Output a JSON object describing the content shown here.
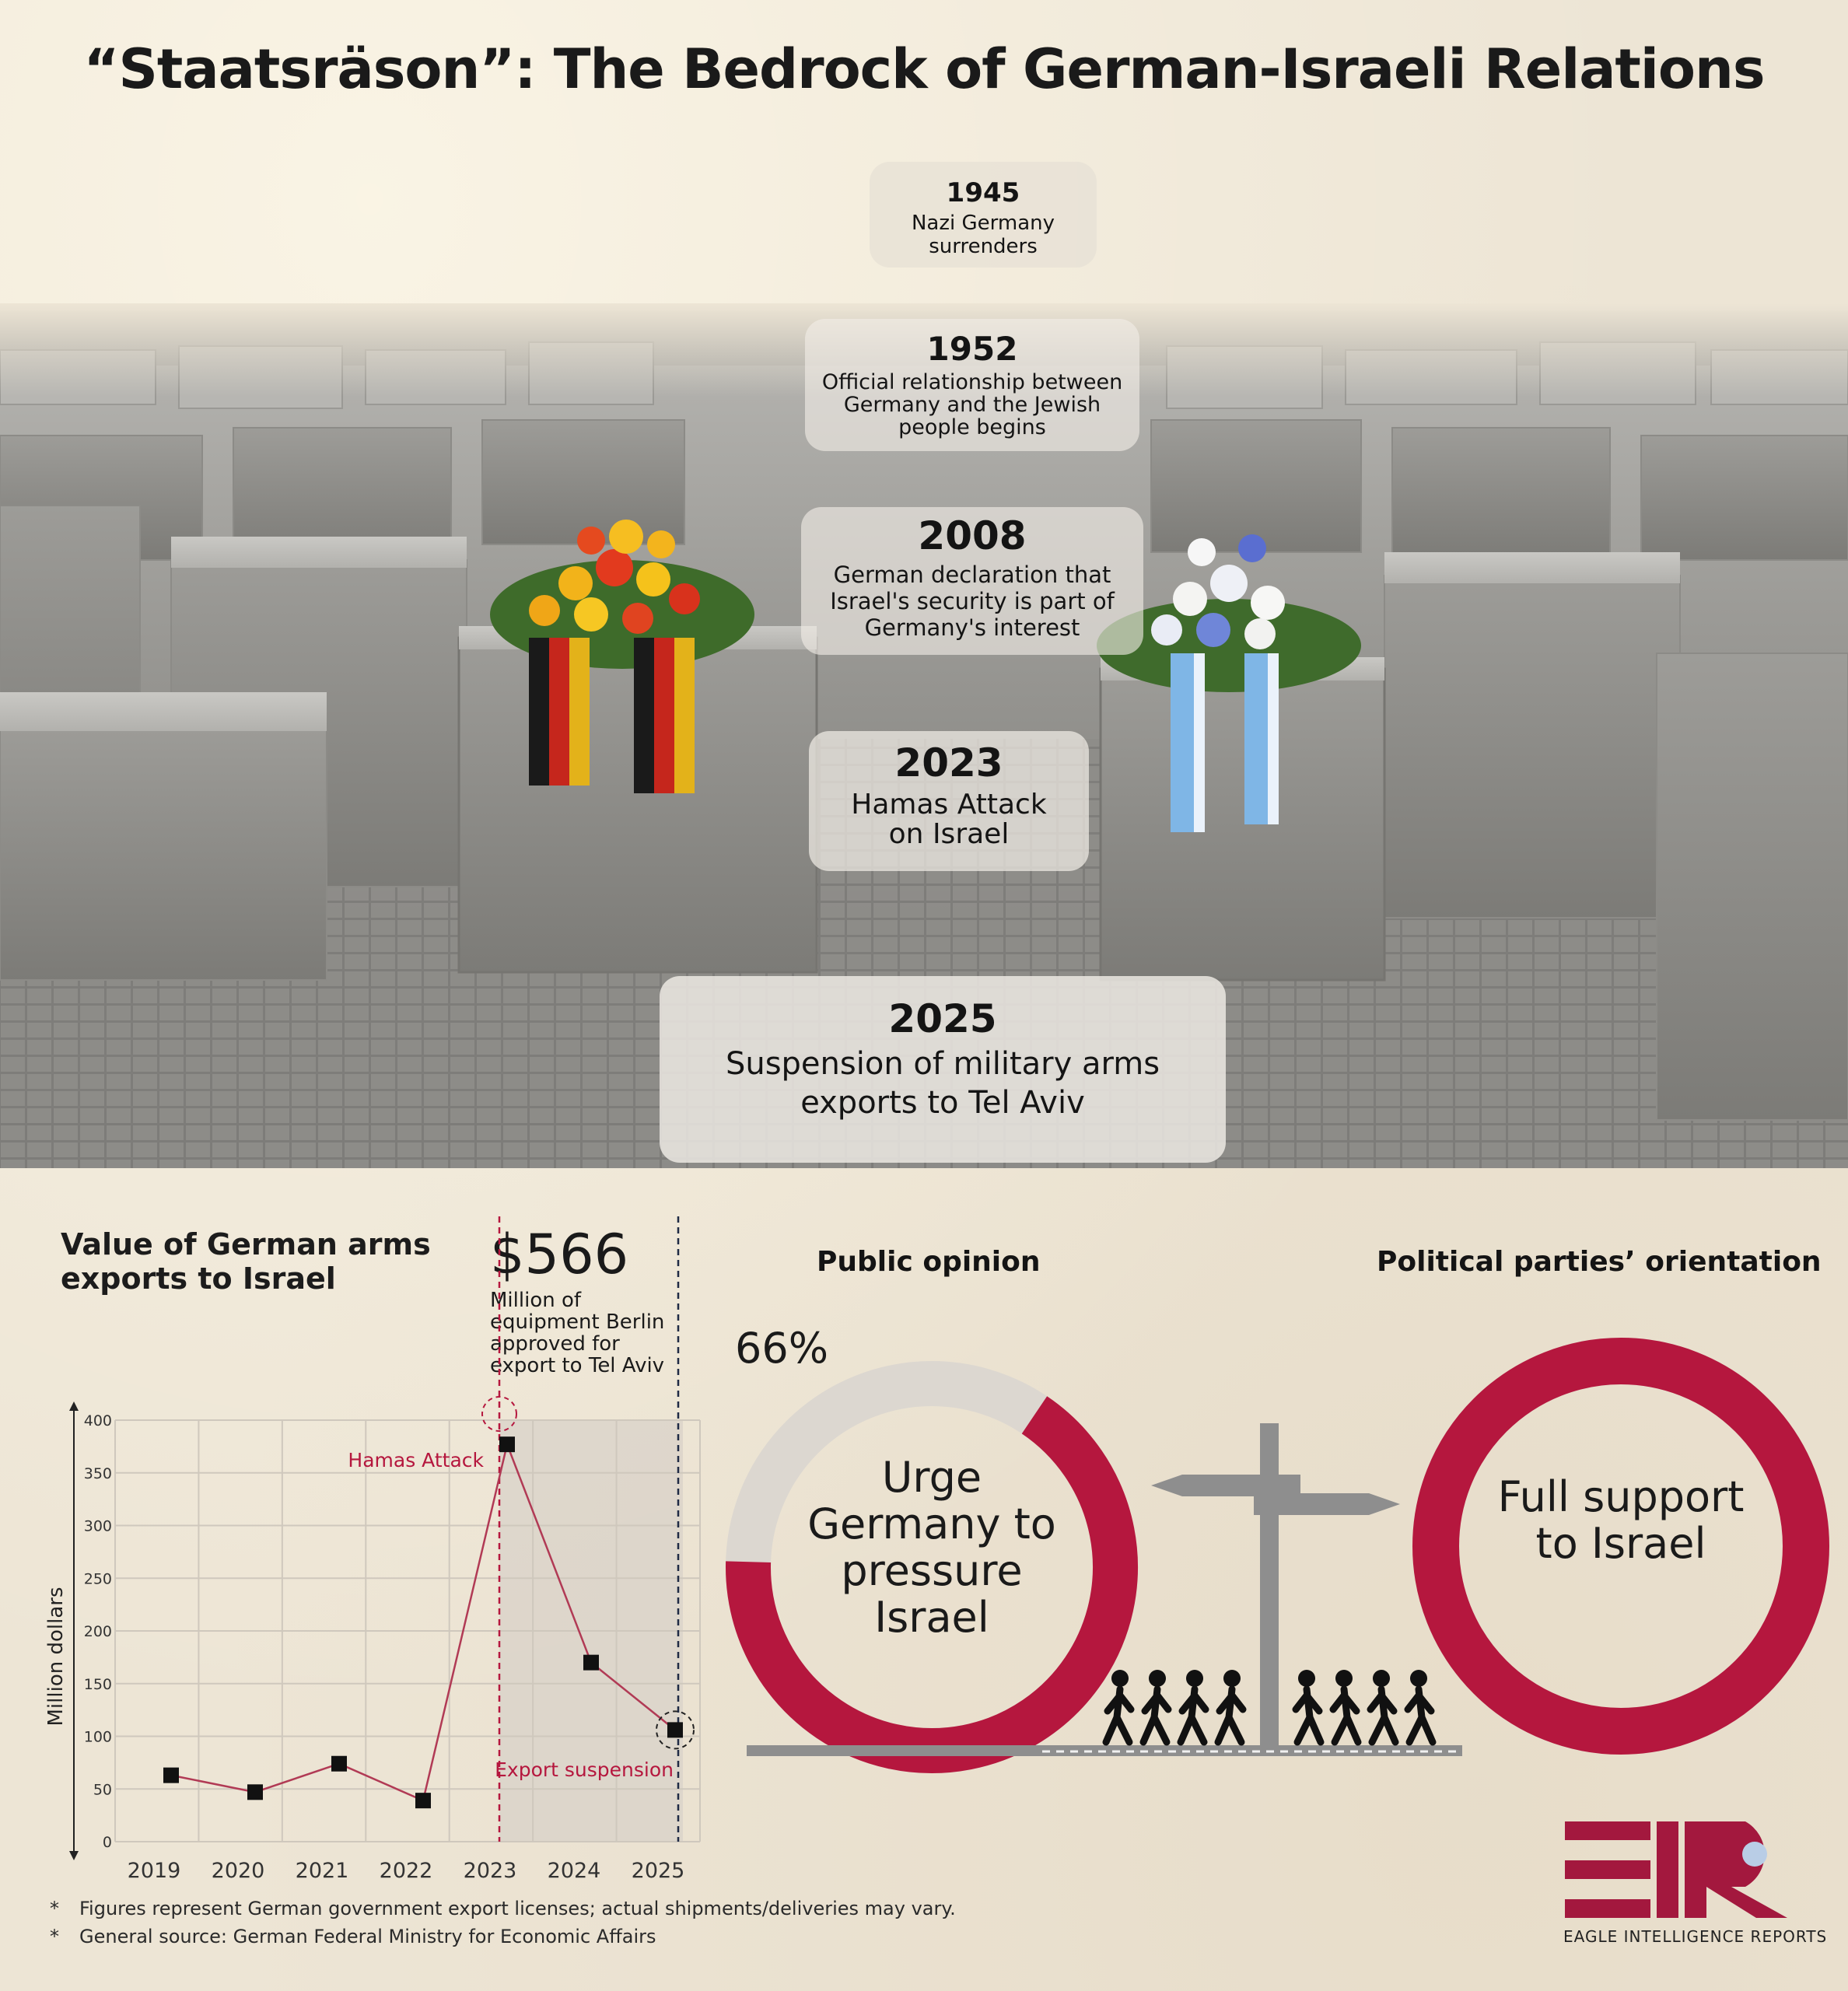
{
  "title": "“Staatsräson”: The Bedrock of German-Israeli Relations",
  "timeline": [
    {
      "year": "1945",
      "desc": "Nazi Germany surrenders"
    },
    {
      "year": "1952",
      "desc": "Official relationship between Germany and the Jewish people begins"
    },
    {
      "year": "2008",
      "desc": "German declaration that Israel's security is part of Germany's interest"
    },
    {
      "year": "2023",
      "desc": "Hamas Attack on Israel"
    },
    {
      "year": "2025",
      "desc": "Suspension of military arms exports to Tel Aviv"
    }
  ],
  "chart_data": {
    "type": "line",
    "title": "Value of German arms exports to Israel",
    "ylabel": "Million dollars",
    "xlabel": "",
    "x": [
      "2019",
      "2020",
      "2021",
      "2022",
      "2023",
      "2024",
      "2025"
    ],
    "values": [
      63,
      47,
      74,
      39,
      377,
      170,
      106
    ],
    "ylim": [
      0,
      400
    ],
    "yticks": [
      0,
      50,
      100,
      150,
      200,
      250,
      300,
      350,
      400
    ],
    "grid": true,
    "annotations": [
      {
        "label": "Hamas Attack",
        "x": "2023"
      },
      {
        "label": "Export suspension",
        "x": "2025"
      }
    ],
    "callout": {
      "value": "$566",
      "desc": "Million of equipment Berlin approved for export to Tel Aviv"
    }
  },
  "public_opinion": {
    "title": "Public opinion",
    "percent_label": "66%",
    "value": 66,
    "label": "Urge Germany to pressure Israel"
  },
  "parties": {
    "title": "Political parties’ orientation",
    "value": 100,
    "label": "Full support to Israel"
  },
  "footnotes": [
    "Figures represent German government export licenses; actual shipments/deliveries may vary.",
    "General source: German Federal Ministry for Economic Affairs"
  ],
  "footnote_marker": "*",
  "logo": {
    "text": "EAGLE INTELLIGENCE REPORTS"
  },
  "colors": {
    "accent": "#b5173e",
    "ring_gray": "#dcd7d0",
    "dark": "#1a1a1a"
  }
}
